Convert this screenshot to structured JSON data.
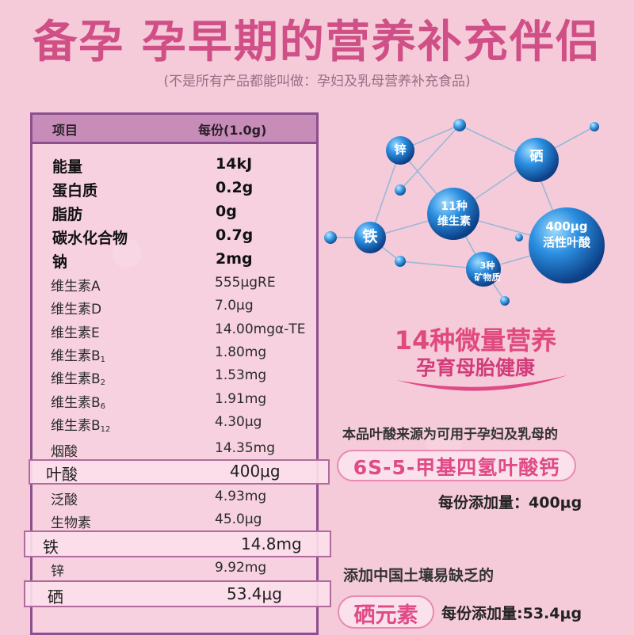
{
  "header": {
    "title": "备孕  孕早期的营养补充伴侣",
    "subtitle": "(不是所有产品都能叫做：孕妇及乳母营养补充食品)"
  },
  "table": {
    "col_item": "项目",
    "col_per_serving": "每份(1.0g)",
    "rows": [
      {
        "name": "能量",
        "value": "14kJ"
      },
      {
        "name": "蛋白质",
        "value": "0.2g"
      },
      {
        "name": "脂肪",
        "value": "0g"
      },
      {
        "name": "碳水化合物",
        "value": "0.7g"
      },
      {
        "name": "钠",
        "value": "2mg"
      },
      {
        "name": "维生素A",
        "value": "555μgRE"
      },
      {
        "name": "维生素D",
        "value": "7.0μg"
      },
      {
        "name": "维生素E",
        "value": "14.00mgα-TE"
      },
      {
        "name": "维生素B",
        "sub": "1",
        "value": "1.80mg"
      },
      {
        "name": "维生素B",
        "sub": "2",
        "value": "1.53mg"
      },
      {
        "name": "维生素B",
        "sub": "6",
        "value": "1.91mg"
      },
      {
        "name": "维生素B",
        "sub": "12",
        "value": "4.30μg"
      },
      {
        "name": "烟酸",
        "value": "14.35mg"
      },
      {
        "name": "叶酸",
        "value": "400μg"
      },
      {
        "name": "泛酸",
        "value": "4.93mg"
      },
      {
        "name": "生物素",
        "value": "45.0μg"
      },
      {
        "name": "铁",
        "value": "14.8mg"
      },
      {
        "name": "锌",
        "value": "9.92mg"
      },
      {
        "name": "硒",
        "value": "53.4μg"
      }
    ]
  },
  "network": {
    "zinc": "锌",
    "selenium": "硒",
    "vitamins_line1": "11种",
    "vitamins_line2": "维生素",
    "iron": "铁",
    "folic_line1": "400μg",
    "folic_line2": "活性叶酸",
    "minerals_line1": "3种",
    "minerals_line2": "矿物质"
  },
  "promo": {
    "micro_title": "14种微量营养",
    "micro_sub": "孕育母胎健康",
    "folic_source": "本品叶酸来源为可用于孕妇及乳母的",
    "folic_name": "6S-5-甲基四氢叶酸钙",
    "folic_amount": "每份添加量：400μg",
    "selenium_intro": "添加中国土壤易缺乏的",
    "selenium_name": "硒元素",
    "selenium_amount": "每份添加量:53.4μg"
  },
  "colors": {
    "background": "#f6cbd9",
    "title": "#cf4f86",
    "accent": "#e04a86",
    "table_border": "#8c4f8f",
    "sphere_blue": "#1b74c9"
  }
}
